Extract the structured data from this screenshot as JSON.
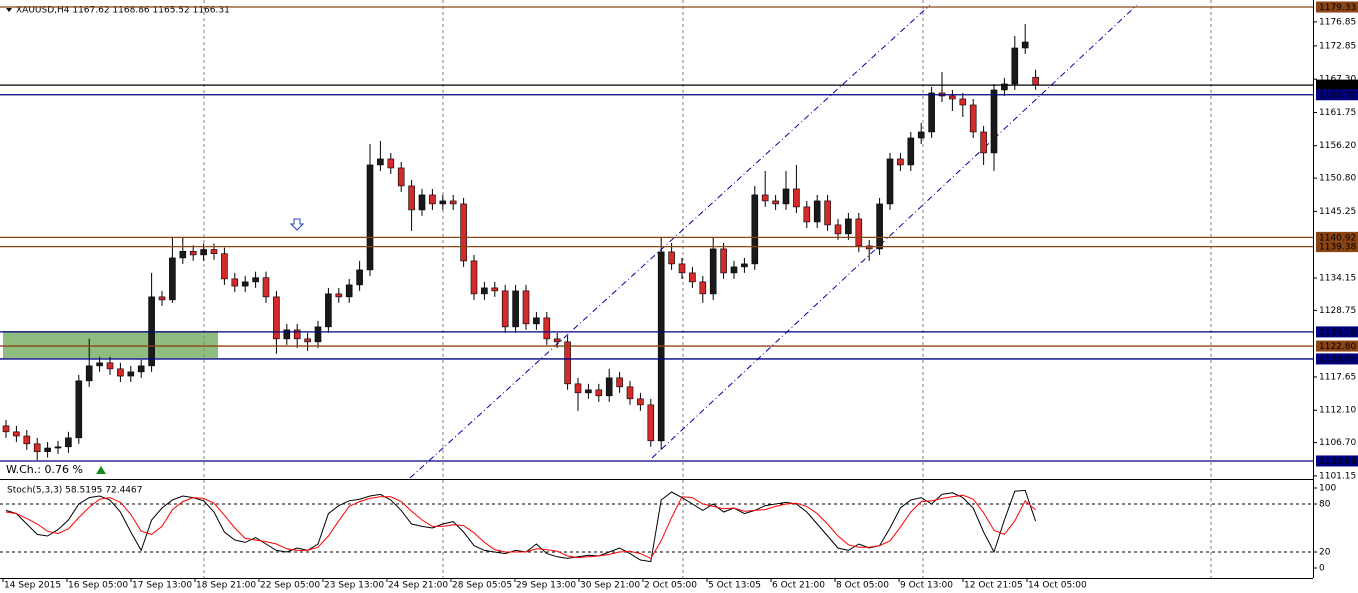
{
  "chart_data": [
    {
      "type": "candlestick",
      "header": "XAUUSD,H4  1167.62 1168.86 1165.52 1166.31",
      "annotation": "W.Ch.: 0.76 %",
      "x_labels": [
        "14 Sep 2015",
        "16 Sep 05:00",
        "17 Sep 13:00",
        "18 Sep 21:00",
        "22 Sep 05:00",
        "23 Sep 13:00",
        "24 Sep 21:00",
        "28 Sep 05:05",
        "29 Sep 13:00",
        "30 Sep 21:00",
        "2 Oct 05:00",
        "5 Oct 13:05",
        "6 Oct 21:00",
        "8 Oct 05:00",
        "9 Oct 13:00",
        "12 Oct 21:05",
        "14 Oct 05:00"
      ],
      "open": [
        1109.5,
        1108.5,
        1107.8,
        1106.5,
        1105.2,
        1105.8,
        1106.0,
        1107.5,
        1117.0,
        1119.5,
        1120.0,
        1119.0,
        1117.8,
        1118.5,
        1119.5,
        1131.0,
        1130.5,
        1137.5,
        1138.6,
        1138.0,
        1138.9,
        1138.2,
        1134.0,
        1132.8,
        1133.5,
        1134.2,
        1131.0,
        1124.0,
        1125.5,
        1124.0,
        1123.5,
        1126.0,
        1131.5,
        1131.0,
        1133.0,
        1135.5,
        1153.0,
        1154.0,
        1152.5,
        1149.5,
        1145.5,
        1148.0,
        1146.5,
        1147.0,
        1146.5,
        1137.0,
        1131.5,
        1132.5,
        1132.0,
        1126.0,
        1132.0,
        1126.5,
        1127.5,
        1124.0,
        1123.5,
        1116.5,
        1115.0,
        1115.5,
        1114.5,
        1117.5,
        1116.0,
        1114.0,
        1113.0,
        1107.0,
        1138.5,
        1136.5,
        1135.0,
        1133.5,
        1131.5,
        1139.0,
        1135.0,
        1136.0,
        1136.5,
        1148.0,
        1147.0,
        1146.5,
        1149.0,
        1146.0,
        1143.5,
        1147.0,
        1143.0,
        1141.5,
        1144.0,
        1139.5,
        1139.0,
        1146.5,
        1154.0,
        1153.0,
        1157.5,
        1158.5,
        1165.0,
        1164.5,
        1164.0,
        1163.0,
        1158.5,
        1155.0,
        1165.5,
        1166.5,
        1172.5,
        1167.62
      ],
      "high": [
        1110.5,
        1109.5,
        1108.8,
        1107.5,
        1106.8,
        1107.0,
        1108.5,
        1118.0,
        1124.0,
        1121.0,
        1121.0,
        1120.0,
        1119.5,
        1120.5,
        1135.0,
        1132.0,
        1141.0,
        1141.0,
        1139.6,
        1139.9,
        1139.9,
        1139.2,
        1135.0,
        1134.5,
        1135.2,
        1135.2,
        1132.0,
        1126.5,
        1126.5,
        1125.0,
        1127.0,
        1132.5,
        1132.5,
        1134.0,
        1137.0,
        1156.5,
        1157.0,
        1155.0,
        1153.5,
        1150.5,
        1149.0,
        1149.0,
        1148.0,
        1148.0,
        1147.5,
        1138.0,
        1133.5,
        1133.5,
        1133.0,
        1133.0,
        1133.0,
        1128.5,
        1128.5,
        1125.0,
        1124.5,
        1117.5,
        1116.5,
        1116.5,
        1119.0,
        1118.5,
        1117.0,
        1115.0,
        1114.0,
        1141.0,
        1140.0,
        1137.5,
        1136.0,
        1134.5,
        1141.0,
        1140.0,
        1137.0,
        1137.5,
        1149.5,
        1152.0,
        1148.0,
        1152.0,
        1153.0,
        1147.0,
        1148.0,
        1148.0,
        1144.0,
        1145.0,
        1145.0,
        1140.5,
        1147.5,
        1155.0,
        1155.0,
        1158.5,
        1160.0,
        1166.0,
        1168.5,
        1165.5,
        1165.0,
        1164.0,
        1159.5,
        1166.5,
        1167.5,
        1174.5,
        1176.5,
        1168.86
      ],
      "low": [
        1107.5,
        1106.8,
        1105.5,
        1103.8,
        1104.2,
        1104.8,
        1105.0,
        1106.5,
        1116.0,
        1118.5,
        1118.0,
        1116.8,
        1116.8,
        1117.5,
        1118.5,
        1129.5,
        1130.0,
        1136.5,
        1137.0,
        1137.0,
        1137.2,
        1133.0,
        1131.8,
        1131.8,
        1132.5,
        1130.0,
        1121.5,
        1123.0,
        1122.5,
        1122.0,
        1122.5,
        1125.0,
        1130.0,
        1130.0,
        1132.0,
        1134.5,
        1152.0,
        1151.5,
        1148.5,
        1142.0,
        1144.5,
        1145.5,
        1145.5,
        1145.5,
        1136.0,
        1130.5,
        1130.5,
        1131.0,
        1125.0,
        1125.0,
        1125.5,
        1125.5,
        1123.0,
        1122.5,
        1115.5,
        1112.0,
        1114.0,
        1113.5,
        1113.5,
        1115.0,
        1113.0,
        1112.0,
        1106.0,
        1105.5,
        1135.5,
        1134.0,
        1132.5,
        1130.0,
        1130.5,
        1134.0,
        1134.0,
        1135.0,
        1135.5,
        1146.0,
        1145.5,
        1145.5,
        1145.0,
        1142.5,
        1142.5,
        1142.0,
        1140.5,
        1140.5,
        1138.5,
        1137.0,
        1138.0,
        1145.5,
        1152.0,
        1152.0,
        1156.5,
        1157.5,
        1163.5,
        1162.0,
        1161.0,
        1157.5,
        1153.0,
        1152.0,
        1164.5,
        1165.5,
        1171.5,
        1165.52
      ],
      "close": [
        1108.5,
        1107.8,
        1106.5,
        1105.2,
        1105.8,
        1106.0,
        1107.5,
        1117.0,
        1119.5,
        1120.0,
        1119.0,
        1117.8,
        1118.5,
        1119.5,
        1131.0,
        1130.5,
        1137.5,
        1138.6,
        1138.0,
        1138.9,
        1138.2,
        1134.0,
        1132.8,
        1133.5,
        1134.2,
        1131.0,
        1124.0,
        1125.5,
        1124.0,
        1123.5,
        1126.0,
        1131.5,
        1131.0,
        1133.0,
        1135.5,
        1153.0,
        1154.0,
        1152.5,
        1149.5,
        1145.5,
        1148.0,
        1146.5,
        1147.0,
        1146.5,
        1137.0,
        1131.5,
        1132.5,
        1132.0,
        1126.0,
        1132.0,
        1126.5,
        1127.5,
        1124.0,
        1123.5,
        1116.5,
        1115.0,
        1115.5,
        1114.5,
        1117.5,
        1116.0,
        1114.0,
        1113.0,
        1107.0,
        1138.5,
        1136.5,
        1135.0,
        1133.5,
        1131.5,
        1139.0,
        1135.0,
        1136.0,
        1136.5,
        1148.0,
        1147.0,
        1146.5,
        1149.0,
        1146.0,
        1143.5,
        1147.0,
        1143.0,
        1141.5,
        1144.0,
        1139.5,
        1139.0,
        1146.5,
        1154.0,
        1153.0,
        1157.5,
        1158.5,
        1165.0,
        1164.5,
        1164.0,
        1163.0,
        1158.5,
        1155.0,
        1165.5,
        1166.5,
        1172.5,
        1173.5,
        1166.31
      ],
      "up_color": "#1a1a1a",
      "down_color": "#d42a2a",
      "ylim": [
        1100.8,
        1180.5
      ],
      "yticks": [
        1176.85,
        1172.85,
        {
          "value": 1167.3,
          "label": "1167.30"
        },
        1161.75,
        {
          "value": 1156.2,
          "label": "1156.20"
        },
        {
          "value": 1150.8,
          "label": "1150.80"
        },
        1145.25,
        1134.15,
        1128.75,
        1117.65,
        {
          "value": 1112.1,
          "label": "1112.10"
        },
        {
          "value": 1106.7,
          "label": "1106.70"
        },
        1101.15
      ],
      "levels": [
        {
          "value": 1179.33,
          "color": "#8b4513"
        },
        {
          "value": 1166.31,
          "color": "#000000"
        },
        {
          "value": 1164.7,
          "label": "1164.70",
          "color": "#000080"
        },
        {
          "value": 1140.92,
          "color": "#8b4513"
        },
        {
          "value": 1139.38,
          "color": "#8b4513"
        },
        {
          "value": 1125.16,
          "color": "#000080"
        },
        {
          "value": 1122.8,
          "label": "1122.80",
          "color": "#8b4513"
        },
        {
          "value": 1120.65,
          "color": "#000080"
        },
        {
          "value": 1103.64,
          "color": "#000080"
        }
      ]
    },
    {
      "type": "line",
      "title": "Stoch(5,3,3) 58.5195 72.4467",
      "ylim": [
        -12.5,
        107.5
      ],
      "yticks": [
        100,
        80,
        20,
        0
      ],
      "levels": [
        80,
        20
      ],
      "series": [
        {
          "color": "#000000",
          "values": [
            72,
            68,
            55,
            42,
            40,
            48,
            60,
            80,
            88,
            90,
            85,
            70,
            45,
            22,
            60,
            75,
            85,
            90,
            88,
            84,
            70,
            45,
            35,
            32,
            38,
            30,
            22,
            20,
            25,
            22,
            30,
            68,
            78,
            84,
            86,
            90,
            92,
            85,
            72,
            55,
            52,
            50,
            55,
            58,
            45,
            28,
            22,
            20,
            18,
            22,
            20,
            30,
            18,
            14,
            12,
            14,
            16,
            15,
            20,
            25,
            18,
            10,
            8,
            85,
            95,
            88,
            80,
            72,
            80,
            70,
            75,
            68,
            72,
            78,
            80,
            82,
            80,
            70,
            55,
            40,
            25,
            22,
            30,
            25,
            28,
            50,
            75,
            85,
            88,
            80,
            92,
            94,
            88,
            75,
            45,
            20,
            60,
            96,
            97,
            58.52
          ]
        },
        {
          "color": "#ff0000",
          "values": [
            70,
            68,
            62,
            55,
            46,
            43,
            49,
            63,
            76,
            86,
            88,
            82,
            67,
            46,
            42,
            52,
            73,
            83,
            88,
            87,
            81,
            66,
            50,
            37,
            35,
            33,
            30,
            24,
            22,
            22,
            26,
            40,
            59,
            77,
            83,
            87,
            89,
            89,
            83,
            71,
            60,
            52,
            52,
            54,
            53,
            44,
            32,
            23,
            20,
            20,
            20,
            24,
            23,
            21,
            15,
            13,
            14,
            15,
            17,
            20,
            21,
            18,
            12,
            34,
            63,
            89,
            88,
            80,
            77,
            74,
            75,
            71,
            72,
            73,
            77,
            80,
            81,
            77,
            68,
            55,
            40,
            29,
            26,
            26,
            28,
            34,
            51,
            70,
            83,
            84,
            87,
            89,
            91,
            86,
            69,
            47,
            42,
            59,
            84,
            72.45
          ]
        }
      ]
    }
  ]
}
